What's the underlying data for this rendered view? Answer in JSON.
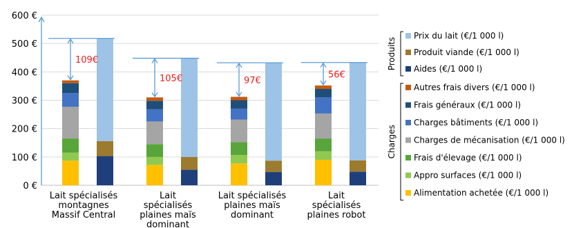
{
  "chart_data": {
    "type": "bar",
    "stacked": true,
    "ylim": [
      0,
      600
    ],
    "yticks": [
      "0 €",
      "100 €",
      "200 €",
      "300 €",
      "400 €",
      "500 €",
      "600 €"
    ],
    "grid": true,
    "legend_position": "right",
    "categories": [
      [
        "Lait spécialisés",
        "montagnes",
        "Massif Central"
      ],
      [
        "Lait",
        "spécialisés",
        "plaines maïs",
        "dominant"
      ],
      [
        "Lait spécialisés",
        "plaines maïs",
        "dominant"
      ],
      [
        "Lait",
        "spécialisés",
        "plaines robot"
      ]
    ],
    "charges_series": [
      {
        "name": "Alimentation achetée (€/1 000 l)",
        "color": "#ffc000",
        "values": [
          87,
          72,
          77,
          90
        ]
      },
      {
        "name": "Appro surfaces (€/1 000 l)",
        "color": "#8fc94f",
        "values": [
          28,
          28,
          30,
          30
        ]
      },
      {
        "name": "Frais d'élevage (€/1 000 l)",
        "color": "#57a53b",
        "values": [
          50,
          45,
          45,
          45
        ]
      },
      {
        "name": "Charges de mécanisation (€/1 000 l)",
        "color": "#a5a5a5",
        "values": [
          112,
          80,
          80,
          88
        ]
      },
      {
        "name": "Charges bâtiments (€/1 000 l)",
        "color": "#4472c4",
        "values": [
          48,
          43,
          38,
          57
        ]
      },
      {
        "name": "Frais généraux (€/1 000 l)",
        "color": "#1f4e79",
        "values": [
          35,
          30,
          30,
          30
        ]
      },
      {
        "name": "Autres frais divers (€/1 000 l)",
        "color": "#c55a11",
        "values": [
          10,
          12,
          12,
          12
        ]
      }
    ],
    "produits_series": [
      {
        "name": "Aides (€/1 000 l)",
        "color": "#1f3f7a",
        "values": [
          103,
          55,
          47,
          48
        ]
      },
      {
        "name": "Produit viande (€/1 000 l)",
        "color": "#9c7a2e",
        "values": [
          53,
          45,
          40,
          40
        ]
      },
      {
        "name": "Prix du lait (€/1 000 l)",
        "color": "#9dc3e6",
        "values": [
          362,
          348,
          345,
          345
        ]
      }
    ],
    "annotations": [
      "109€",
      "105€",
      "97€",
      "56€"
    ],
    "legend_groups": [
      "Produits",
      "Charges"
    ]
  }
}
